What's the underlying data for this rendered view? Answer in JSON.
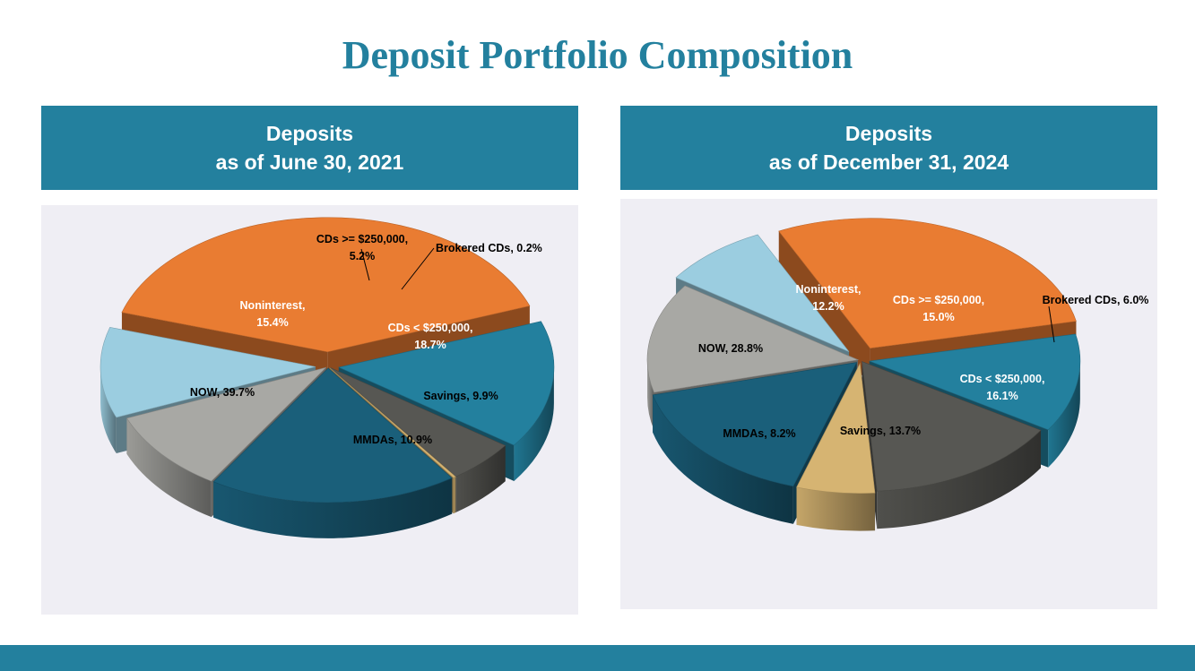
{
  "title": "Deposit Portfolio Composition",
  "colors": {
    "accent": "#23809e",
    "chart_bg": "#efeef4",
    "now": "#e97c32",
    "noninterest": "#23809e",
    "cds_ge_250k": "#575753",
    "brokered_cds": "#d6b472",
    "cds_lt_250k": "#1a5f7a",
    "savings": "#a8a8a4",
    "mmdas": "#9bcde0"
  },
  "panels": {
    "left": {
      "header_line1": "Deposits",
      "header_line2": "as of June 30, 2021"
    },
    "right": {
      "header_line1": "Deposits",
      "header_line2": "as of December 31, 2024"
    }
  },
  "chart_data": [
    {
      "type": "pie",
      "title": "Deposits as of June 30, 2021",
      "slices": [
        {
          "name": "Noninterest",
          "label_lines": [
            "Noninterest,",
            "15.4%"
          ],
          "value": 15.4,
          "color": "#23809e",
          "label_color": "#ffffff"
        },
        {
          "name": "CDs >= $250,000",
          "label_lines": [
            "CDs >= $250,000,",
            "5.2%"
          ],
          "value": 5.2,
          "color": "#575753",
          "label_color": "#000000"
        },
        {
          "name": "Brokered CDs",
          "label_lines": [
            "Brokered CDs, 0.2%"
          ],
          "value": 0.2,
          "color": "#d6b472",
          "label_color": "#000000"
        },
        {
          "name": "CDs < $250,000",
          "label_lines": [
            "CDs < $250,000,",
            "18.7%"
          ],
          "value": 18.7,
          "color": "#1a5f7a",
          "label_color": "#ffffff"
        },
        {
          "name": "Savings",
          "label_lines": [
            "Savings, 9.9%"
          ],
          "value": 9.9,
          "color": "#a8a8a4",
          "label_color": "#000000"
        },
        {
          "name": "MMDAs",
          "label_lines": [
            "MMDAs, 10.9%"
          ],
          "value": 10.9,
          "color": "#9bcde0",
          "label_color": "#000000"
        },
        {
          "name": "NOW",
          "label_lines": [
            "NOW, 39.7%"
          ],
          "value": 39.7,
          "color": "#e97c32",
          "label_color": "#000000"
        }
      ]
    },
    {
      "type": "pie",
      "title": "Deposits as of December 31, 2024",
      "slices": [
        {
          "name": "Noninterest",
          "label_lines": [
            "Noninterest,",
            "12.2%"
          ],
          "value": 12.2,
          "color": "#23809e",
          "label_color": "#ffffff"
        },
        {
          "name": "CDs >= $250,000",
          "label_lines": [
            "CDs >= $250,000,",
            "15.0%"
          ],
          "value": 15.0,
          "color": "#575753",
          "label_color": "#ffffff"
        },
        {
          "name": "Brokered CDs",
          "label_lines": [
            "Brokered CDs, 6.0%"
          ],
          "value": 6.0,
          "color": "#d6b472",
          "label_color": "#000000"
        },
        {
          "name": "CDs < $250,000",
          "label_lines": [
            "CDs < $250,000,",
            "16.1%"
          ],
          "value": 16.1,
          "color": "#1a5f7a",
          "label_color": "#ffffff"
        },
        {
          "name": "Savings",
          "label_lines": [
            "Savings, 13.7%"
          ],
          "value": 13.7,
          "color": "#a8a8a4",
          "label_color": "#000000"
        },
        {
          "name": "MMDAs",
          "label_lines": [
            "MMDAs, 8.2%"
          ],
          "value": 8.2,
          "color": "#9bcde0",
          "label_color": "#000000"
        },
        {
          "name": "NOW",
          "label_lines": [
            "NOW, 28.8%"
          ],
          "value": 28.8,
          "color": "#e97c32",
          "label_color": "#000000"
        }
      ]
    }
  ]
}
